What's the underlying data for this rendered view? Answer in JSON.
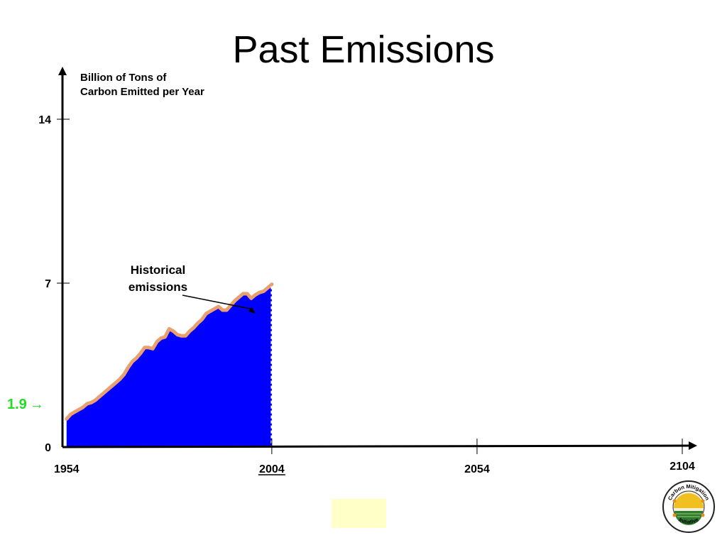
{
  "slide": {
    "title": "Past Emissions"
  },
  "chart_data": {
    "type": "area",
    "ylabel": "Billion of Tons of Carbon Emitted per Year",
    "xlabel": "",
    "x_ticks": [
      {
        "value": 1954,
        "label": "1954",
        "underline": false
      },
      {
        "value": 2004,
        "label": "2004",
        "underline": true
      },
      {
        "value": 2054,
        "label": "2054",
        "underline": false
      },
      {
        "value": 2104,
        "label": "2104",
        "underline": false
      }
    ],
    "y_ticks": [
      {
        "value": 0,
        "label": "0"
      },
      {
        "value": 7,
        "label": "7"
      },
      {
        "value": 14,
        "label": "14"
      }
    ],
    "xlim": [
      1953,
      2107
    ],
    "ylim": [
      0,
      15.8
    ],
    "series": [
      {
        "name": "Historical emissions",
        "fill_color": "#0000ff",
        "line_color": "#e8a070",
        "x": [
          1954,
          1955,
          1956,
          1957,
          1958,
          1959,
          1960,
          1961,
          1962,
          1963,
          1964,
          1965,
          1966,
          1967,
          1968,
          1969,
          1970,
          1971,
          1972,
          1973,
          1974,
          1975,
          1976,
          1977,
          1978,
          1979,
          1980,
          1981,
          1982,
          1983,
          1984,
          1985,
          1986,
          1987,
          1988,
          1989,
          1990,
          1991,
          1992,
          1993,
          1994,
          1995,
          1996,
          1997,
          1998,
          1999,
          2000,
          2001,
          2002,
          2003,
          2004
        ],
        "y": [
          1.2,
          1.4,
          1.5,
          1.6,
          1.7,
          1.85,
          1.9,
          2.0,
          2.15,
          2.3,
          2.45,
          2.6,
          2.75,
          2.9,
          3.1,
          3.4,
          3.65,
          3.8,
          4.0,
          4.25,
          4.25,
          4.2,
          4.5,
          4.65,
          4.7,
          5.05,
          4.95,
          4.8,
          4.75,
          4.75,
          4.95,
          5.1,
          5.3,
          5.45,
          5.7,
          5.8,
          5.9,
          6.0,
          5.85,
          5.85,
          6.05,
          6.25,
          6.4,
          6.55,
          6.55,
          6.35,
          6.5,
          6.6,
          6.65,
          6.8,
          6.95
        ]
      }
    ],
    "annotations": [
      {
        "text": "Historical emissions",
        "x": 2000,
        "y": 5.7
      },
      {
        "text": "1.9",
        "arrow": "→",
        "y": 1.3,
        "color": "#22dd22"
      }
    ]
  },
  "colors": {
    "axis": "#000000",
    "fill": "#0000ff",
    "outline": "#e8a070",
    "highlight": "#22dd22",
    "yellow_box": "#ffffc8"
  },
  "logo": {
    "top_text": "Carbon Mitigation",
    "bottom_text": "Initiative"
  }
}
